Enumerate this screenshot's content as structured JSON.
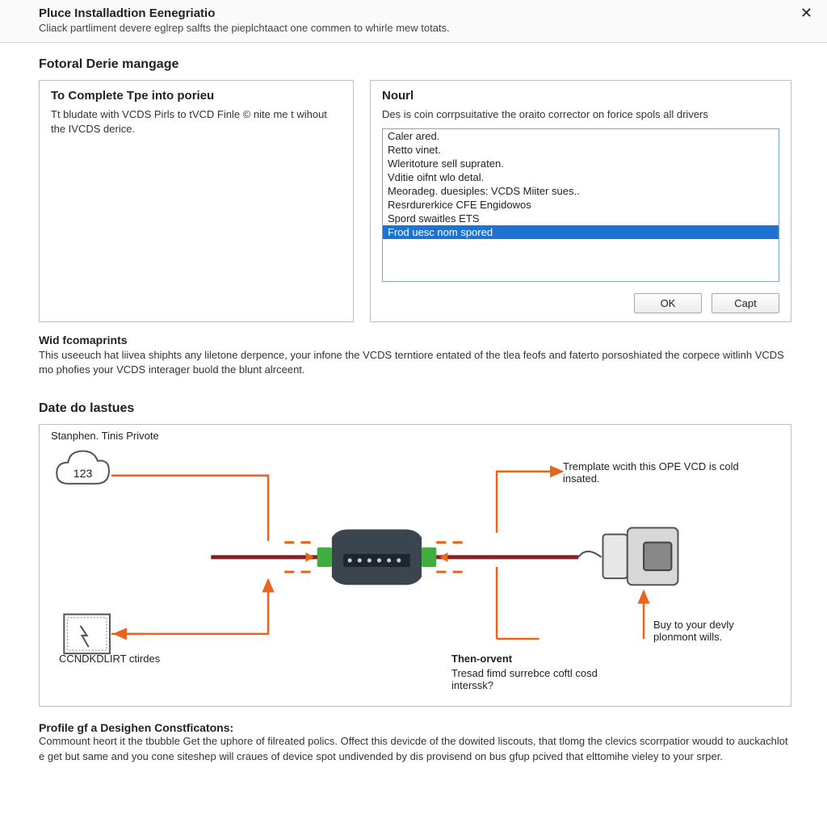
{
  "header": {
    "title": "Pluce Installadtion Eenegriatio",
    "subtitle": "Cliack partliment devere eglrep salfts the pieplchtaact one commen to whirle mew totats.",
    "close_glyph": "✕"
  },
  "section1": {
    "heading": "Fotoral Derie mangage",
    "left": {
      "title": "To Complete Tpe into porieu",
      "desc": "Tt bludate with VCDS Pirls to tVCD Finle © nite me t wihout the IVCDS derice."
    },
    "right": {
      "title": "Nourl",
      "desc": "Des is coin corrpsuitative the oraito corrector on forice spols all drivers",
      "items": [
        "Caler ared.",
        "Retto vinet.",
        "Wleritoture sell supraten.",
        "Vditie oifnt wlo detal.",
        "Meoradeg. duesiples: VCDS Miiter sues..",
        "Resrdurerkice CFE Engidowos",
        "Spord swaitles ETS",
        "Frod uesc nom spored"
      ],
      "selected_index": 7,
      "ok_label": "OK",
      "capt_label": "Capt"
    }
  },
  "para1": {
    "heading": "Wid fcomaprints",
    "body": "This useeuch hat liivea shiphts any liletone derpence, your infone the VCDS terntiore entated of the tlea feofs and faterto porsoshiated the corpece witlinh VCDS mo phofies your VCDS interager buold the blunt alrceent."
  },
  "diagram": {
    "heading": "Date do lastues",
    "colors": {
      "connector": "#e8651b",
      "cable": "#8a1f1f",
      "device_body": "#3a4550",
      "device_light": "#a8b0b8",
      "plug_green": "#3fae3f",
      "box_stroke": "#555",
      "cloud_stroke": "#555"
    },
    "labels": {
      "top_left": "Stanphen. Tinis Privote",
      "cloud_text": "123",
      "box_text": "CCNDKDLIRT ctirdes",
      "top_right": "Tremplate wcith this OPE VCD is cold insated.",
      "bottom_right": "Buy to your devly plonmont wills.",
      "center_bottom_h": "Then-orvent",
      "center_bottom_b": "Tresad fimd surrebce coftl cosd interssk?"
    }
  },
  "footer": {
    "heading": "Profile gf a Desighen Constficatons:",
    "body": "Commount heort it the tbubble Get the uphore of filreated polics. Offect this devicde of the dowited liscouts, that tlomg the clevics scorrpatior woudd to auckachlot e get but same and you cone siteshep will craues of device spot undivended by dis provisend on bus gfup pcived that elttomihe vieley to your srper."
  }
}
